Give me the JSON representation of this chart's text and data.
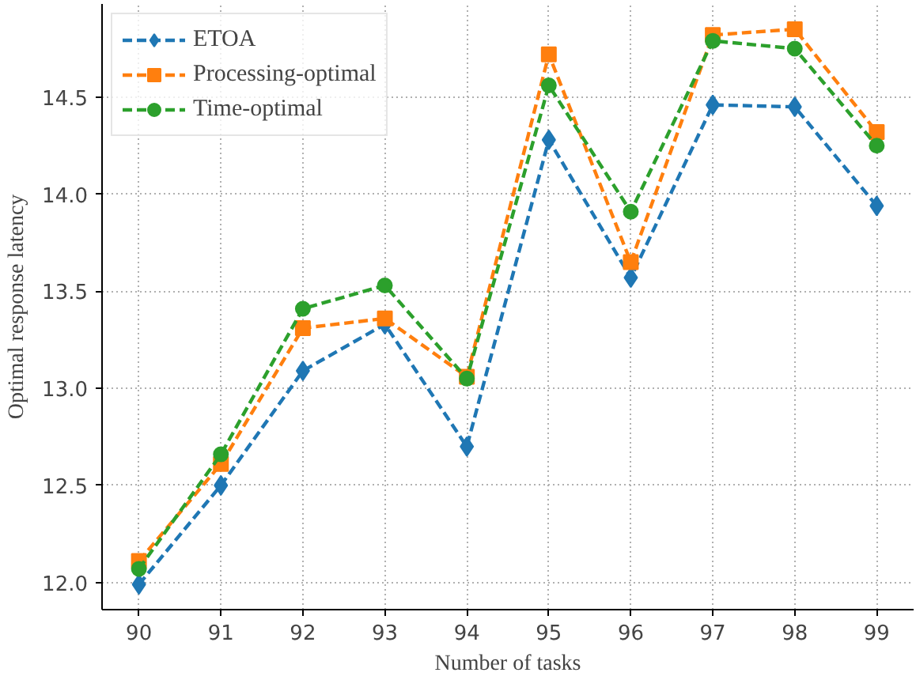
{
  "chart_data": {
    "type": "line",
    "xlabel": "Number of tasks",
    "ylabel": "Optimal response latency",
    "x": [
      90,
      91,
      92,
      93,
      94,
      95,
      96,
      97,
      98,
      99
    ],
    "series": [
      {
        "name": "ETOA",
        "color": "#1f77b4",
        "marker": "diamond",
        "values": [
          11.99,
          12.5,
          13.09,
          13.33,
          12.7,
          14.28,
          13.57,
          14.46,
          14.45,
          13.94
        ]
      },
      {
        "name": "Processing-optimal",
        "color": "#ff7f0e",
        "marker": "square",
        "values": [
          12.11,
          12.61,
          13.31,
          13.36,
          13.06,
          14.72,
          13.65,
          14.82,
          14.85,
          14.32
        ]
      },
      {
        "name": "Time-optimal",
        "color": "#2ca02c",
        "marker": "circle",
        "values": [
          12.07,
          12.66,
          13.41,
          13.53,
          13.05,
          14.56,
          13.91,
          14.79,
          14.75,
          14.25
        ]
      }
    ],
    "xlim": [
      89.55,
      99.45
    ],
    "ylim": [
      11.86,
      14.98
    ],
    "xticks": [
      90,
      91,
      92,
      93,
      94,
      95,
      96,
      97,
      98,
      99
    ],
    "yticks": [
      {
        "value": 12,
        "label": "12.0"
      },
      {
        "value": 12.5,
        "label": "12.5"
      },
      {
        "value": 13,
        "label": "13.0"
      },
      {
        "value": 13.5,
        "label": "13.5"
      },
      {
        "value": 14,
        "label": "14.0"
      },
      {
        "value": 14.5,
        "label": "14.5"
      }
    ],
    "grid": true,
    "legend": "top left",
    "line_style": "dashed"
  }
}
